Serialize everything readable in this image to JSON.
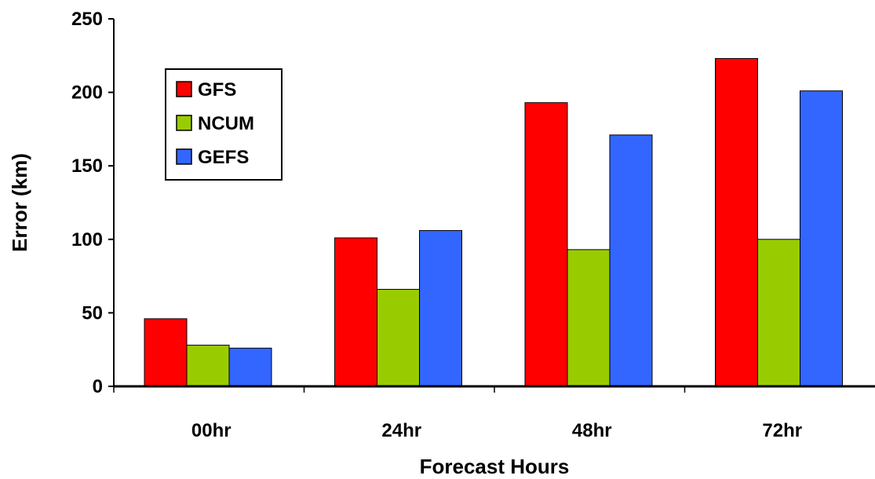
{
  "chart_data": {
    "type": "bar",
    "title": "",
    "xlabel": "Forecast Hours",
    "ylabel": "Error (km)",
    "categories": [
      "00hr",
      "24hr",
      "48hr",
      "72hr"
    ],
    "ylim": [
      0,
      250
    ],
    "yticks": [
      0,
      50,
      100,
      150,
      200,
      250
    ],
    "grid": false,
    "legend_position": "top-left",
    "series": [
      {
        "name": "GFS",
        "color": "#ff0000",
        "values": [
          46,
          101,
          193,
          223
        ]
      },
      {
        "name": "NCUM",
        "color": "#99cc00",
        "values": [
          28,
          66,
          93,
          100
        ]
      },
      {
        "name": "GEFS",
        "color": "#3366ff",
        "values": [
          26,
          106,
          171,
          201
        ]
      }
    ]
  }
}
